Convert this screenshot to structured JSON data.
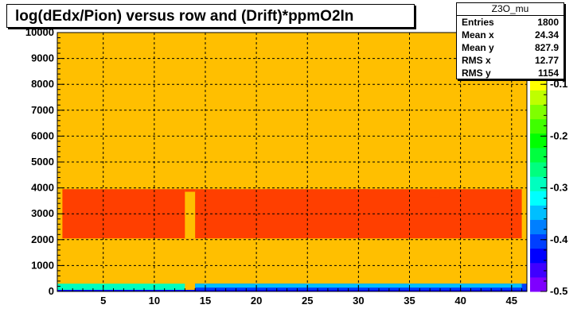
{
  "title": "log(dEdx/Pion) versus row and (Drift)*ppmO2In",
  "stats": {
    "name": "Z3O_mu",
    "rows": [
      {
        "label": "Entries",
        "value": "1800"
      },
      {
        "label": "Mean x",
        "value": "24.34"
      },
      {
        "label": "Mean y",
        "value": "827.9"
      },
      {
        "label": "RMS x",
        "value": "12.77"
      },
      {
        "label": "RMS y",
        "value": "1154"
      }
    ]
  },
  "chart_data": {
    "type": "heatmap",
    "title": "log(dEdx/Pion) versus row and (Drift)*ppmO2In",
    "xlim": [
      0.5,
      46.5
    ],
    "ylim": [
      0,
      10000
    ],
    "x_ticks": [
      5,
      10,
      15,
      20,
      25,
      30,
      35,
      40,
      45
    ],
    "y_ticks": [
      0,
      1000,
      2000,
      3000,
      4000,
      5000,
      6000,
      7000,
      8000,
      9000,
      10000
    ],
    "z_ticks": [
      -0.1,
      -0.2,
      -0.3,
      -0.4,
      -0.5
    ],
    "zlim": [
      -0.5,
      0.0
    ],
    "grid": true,
    "regions": [
      {
        "x": [
          0.5,
          46.5
        ],
        "y": [
          0,
          10000
        ],
        "z": -0.06
      },
      {
        "x": [
          1,
          46
        ],
        "y": [
          2050,
          3950
        ],
        "z": -0.02
      },
      {
        "x": [
          13,
          14
        ],
        "y": [
          2050,
          3950
        ],
        "z": -0.06
      },
      {
        "x": [
          0.5,
          13
        ],
        "y": [
          600,
          800
        ],
        "z": -0.06
      },
      {
        "x": [
          0.5,
          13
        ],
        "y": [
          150,
          450
        ],
        "z": -0.06
      },
      {
        "x": [
          0.5,
          13
        ],
        "y": [
          50,
          300
        ],
        "z": -0.3
      },
      {
        "x": [
          14,
          46.5
        ],
        "y": [
          50,
          300
        ],
        "z": -0.4
      },
      {
        "x": [
          0.5,
          46.5
        ],
        "y": [
          0,
          60
        ],
        "z": -0.44
      },
      {
        "x": [
          14,
          46
        ],
        "y": [
          150,
          300
        ],
        "z": -0.34
      }
    ],
    "hot_cells": [
      {
        "x": [
          37,
          38
        ],
        "y": [
          3650,
          3850
        ],
        "z": 0.0
      },
      {
        "x": [
          29,
          31
        ],
        "y": [
          3850,
          3950
        ],
        "z": 0.0
      },
      {
        "x": [
          39,
          40
        ],
        "y": [
          3850,
          3950
        ],
        "z": 0.0
      },
      {
        "x": [
          21,
          22
        ],
        "y": [
          3850,
          3950
        ],
        "z": 0.0
      },
      {
        "x": [
          13,
          14
        ],
        "y": [
          3850,
          3950
        ],
        "z": 0.0
      }
    ]
  },
  "palette": {
    "scale": [
      "#7f00ff",
      "#3f00ff",
      "#0000ff",
      "#003fff",
      "#007fff",
      "#00bfff",
      "#00ffff",
      "#00ffbf",
      "#00ff7f",
      "#00ff3f",
      "#00ff00",
      "#3fff00",
      "#7fff00",
      "#bfff00",
      "#ffff00",
      "#ffbf00",
      "#ff7f00",
      "#ff3f00"
    ],
    "frame": "#000000",
    "grid": "#000000"
  }
}
